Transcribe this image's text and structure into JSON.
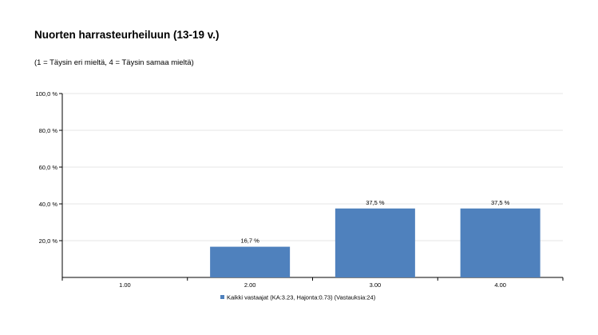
{
  "header": {
    "title": "Nuorten harrasteurheiluun (13-19 v.)",
    "subtitle": "(1 = Täysin eri mieltä, 4 = Täysin samaa mieltä)"
  },
  "chart_data": {
    "type": "bar",
    "categories": [
      "1.00",
      "2.00",
      "3.00",
      "4.00"
    ],
    "series": [
      {
        "name": "Kaikki vastaajat (KA:3.23, Hajonta:0.73) (Vastauksia:24)",
        "values": [
          0,
          16.7,
          37.5,
          37.5
        ],
        "labels": [
          "",
          "16,7 %",
          "37,5 %",
          "37,5 %"
        ]
      }
    ],
    "ylim": [
      0,
      100
    ],
    "yticks": [
      20,
      40,
      60,
      80,
      100
    ],
    "ytick_labels": [
      "20,0 %",
      "40,0 %",
      "60,0 %",
      "80,0 %",
      "100,0 %"
    ],
    "grid": true,
    "legend_position": "bottom",
    "bar_color": "#4f81bd"
  }
}
